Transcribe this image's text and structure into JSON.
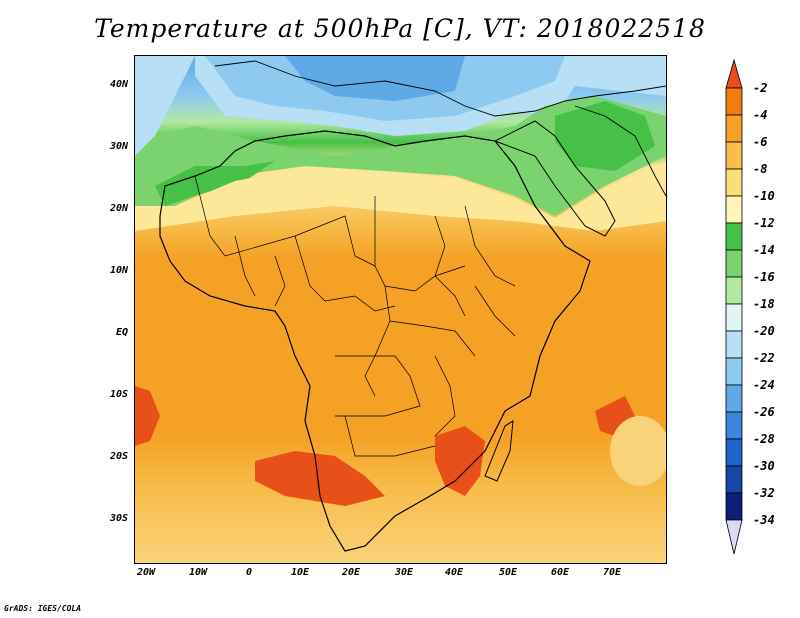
{
  "title": "Temperature at 500hPa [C], VT: 2018022518",
  "footer": "GrADS: IGES/COLA",
  "map": {
    "variable": "Temperature at 500hPa",
    "units": "C",
    "valid_time": "2018022518",
    "lon_range": [
      -25,
      80
    ],
    "lat_range": [
      -37,
      45
    ],
    "x_ticks": [
      "20W",
      "10W",
      "0",
      "10E",
      "20E",
      "30E",
      "40E",
      "50E",
      "60E",
      "70E"
    ],
    "y_ticks": [
      "40N",
      "30N",
      "20N",
      "10N",
      "EQ",
      "10S",
      "20S",
      "30S"
    ]
  },
  "colorbar": {
    "labels": [
      "-2",
      "-4",
      "-6",
      "-8",
      "-10",
      "-12",
      "-14",
      "-16",
      "-18",
      "-20",
      "-22",
      "-24",
      "-26",
      "-28",
      "-30",
      "-32",
      "-34"
    ],
    "colors": [
      "#e8501a",
      "#f27d0f",
      "#f5a125",
      "#f7be4d",
      "#fade7a",
      "#fdf6b7",
      "#46c046",
      "#7ad36e",
      "#b3e8a3",
      "#e0f5f4",
      "#b7dff6",
      "#8ecaf0",
      "#5ea9e6",
      "#3a86dc",
      "#2063cb",
      "#1647a6",
      "#0e1f78",
      "#dcd9f2"
    ]
  }
}
